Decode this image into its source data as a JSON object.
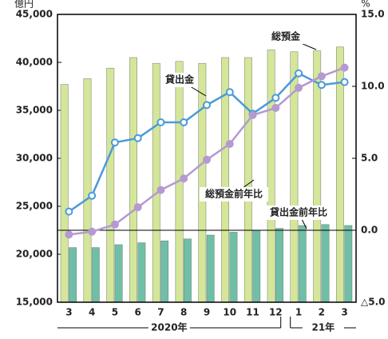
{
  "chart_data": {
    "type": "bar_line",
    "y_unit": "億円",
    "y2_unit": "%",
    "categories": [
      "3",
      "4",
      "5",
      "6",
      "7",
      "8",
      "9",
      "10",
      "11",
      "12",
      "1",
      "2",
      "3"
    ],
    "year_labels": [
      "2020年",
      "21年"
    ],
    "ylim": [
      15000,
      45000
    ],
    "yticks": [
      {
        "value": 15000,
        "label": "15,000"
      },
      {
        "value": 20000,
        "label": "20,000"
      },
      {
        "value": 25000,
        "label": "25,000"
      },
      {
        "value": 30000,
        "label": "30,000"
      },
      {
        "value": 35000,
        "label": "35,000"
      },
      {
        "value": 40000,
        "label": "40,000"
      },
      {
        "value": 45000,
        "label": "45,000"
      }
    ],
    "y2lim": [
      -5,
      15
    ],
    "y2ticks": [
      {
        "value": -5,
        "label": "△5.0"
      },
      {
        "value": 0,
        "label": "0.0"
      },
      {
        "value": 5,
        "label": "5.0"
      },
      {
        "value": 10,
        "label": "10.0"
      },
      {
        "value": 15,
        "label": "15.0"
      }
    ],
    "series": [
      {
        "name": "総預金",
        "kind": "bar",
        "color": "#d4e69a",
        "values": [
          37700,
          38300,
          39400,
          40500,
          39900,
          40100,
          39900,
          40500,
          40500,
          41300,
          41100,
          41200,
          41600
        ]
      },
      {
        "name": "貸出金",
        "kind": "bar",
        "color": "#6fbfa6",
        "values": [
          20700,
          20700,
          21000,
          21200,
          21400,
          21600,
          22000,
          22300,
          22500,
          22700,
          23000,
          23100,
          23000
        ]
      },
      {
        "name": "総預金前年比",
        "kind": "line",
        "axis": "y2",
        "color": "#4a9ad8",
        "values": [
          1.3,
          2.4,
          6.1,
          6.4,
          7.5,
          7.5,
          8.7,
          9.6,
          8.1,
          9.2,
          10.9,
          10.1,
          10.3
        ]
      },
      {
        "name": "貸出金前年比",
        "kind": "line",
        "axis": "y2",
        "color": "#b49ad0",
        "values": [
          -0.3,
          -0.1,
          0.4,
          1.6,
          2.8,
          3.6,
          4.9,
          6.0,
          8.0,
          8.5,
          9.9,
          10.7,
          11.3
        ]
      }
    ]
  }
}
